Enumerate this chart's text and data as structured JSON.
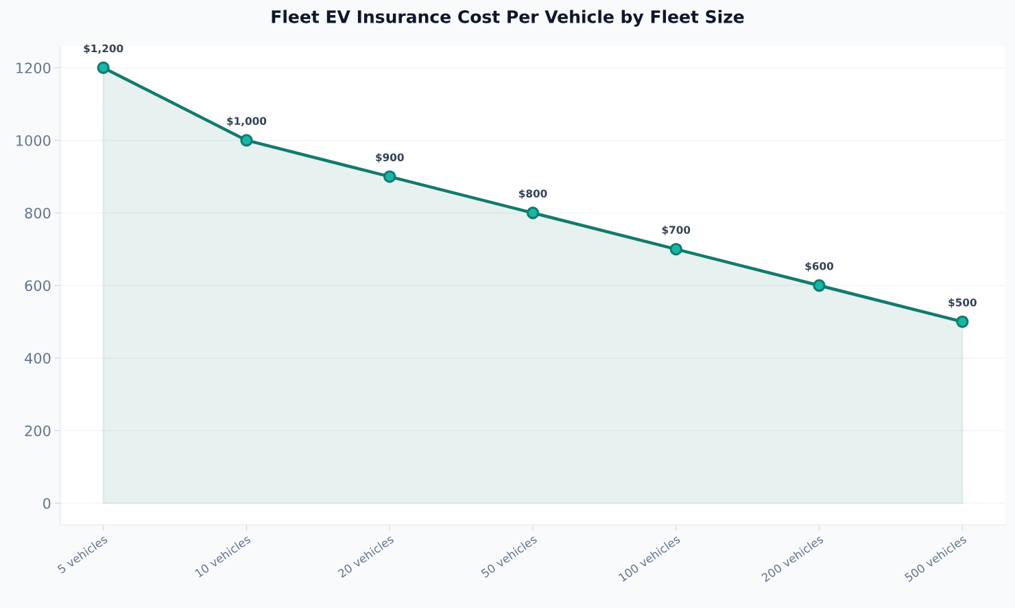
{
  "chart_data": {
    "type": "area",
    "title": "Fleet EV Insurance Cost Per Vehicle by Fleet Size",
    "categories": [
      "5 vehicles",
      "10 vehicles",
      "20 vehicles",
      "50 vehicles",
      "100 vehicles",
      "200 vehicles",
      "500 vehicles"
    ],
    "series": [
      {
        "color": "#127a6e",
        "values": [
          1200,
          1000,
          900,
          800,
          700,
          600,
          500
        ],
        "value_labels": [
          "$1,200",
          "$1,000",
          "$900",
          "$800",
          "$700",
          "$600",
          "$500"
        ]
      }
    ],
    "ylim": [
      -60,
      1260
    ],
    "yticks": [
      0,
      200,
      400,
      600,
      800,
      1000,
      1200
    ],
    "grid": "y",
    "marker": "circle",
    "line_style": "solid"
  }
}
